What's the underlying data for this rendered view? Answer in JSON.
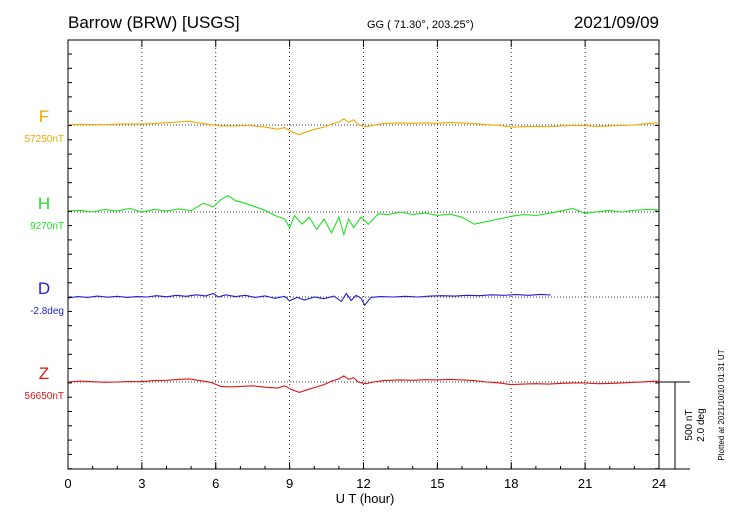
{
  "header": {
    "station": "Barrow (BRW)  [USGS]",
    "coords": "GG ( 71.30°, 203.25°)",
    "date": "2021/09/09"
  },
  "footer": {
    "plotted_note": "Plotted at 2021/10/10 01:31 UT",
    "scale_nt": "500 nT",
    "scale_deg": "2.0 deg"
  },
  "colors": {
    "F": "#f2a900",
    "H": "#22e022",
    "D": "#1f1fd6",
    "Z": "#e01414"
  },
  "chart_data": {
    "type": "line",
    "xlabel": "U T (hour)",
    "xlim": [
      0,
      24
    ],
    "xticks": [
      0,
      3,
      6,
      9,
      12,
      15,
      18,
      21,
      24
    ],
    "grid": true,
    "series": [
      {
        "name": "F",
        "baseline_label": "57250nT",
        "color_key": "F",
        "points": [
          [
            0,
            57252
          ],
          [
            0.5,
            57254
          ],
          [
            1,
            57253
          ],
          [
            1.5,
            57251
          ],
          [
            2,
            57255
          ],
          [
            2.5,
            57256
          ],
          [
            3,
            57255
          ],
          [
            3.5,
            57258
          ],
          [
            4,
            57263
          ],
          [
            4.5,
            57268
          ],
          [
            4.9,
            57272
          ],
          [
            5.3,
            57262
          ],
          [
            5.8,
            57252
          ],
          [
            6.2,
            57245
          ],
          [
            6.8,
            57244
          ],
          [
            7.4,
            57247
          ],
          [
            8,
            57238
          ],
          [
            8.5,
            57226
          ],
          [
            8.8,
            57235
          ],
          [
            9.1,
            57210
          ],
          [
            9.4,
            57195
          ],
          [
            9.7,
            57212
          ],
          [
            10,
            57225
          ],
          [
            10.4,
            57238
          ],
          [
            10.7,
            57255
          ],
          [
            11,
            57268
          ],
          [
            11.2,
            57285
          ],
          [
            11.4,
            57265
          ],
          [
            11.6,
            57280
          ],
          [
            11.8,
            57250
          ],
          [
            12.1,
            57240
          ],
          [
            12.4,
            57248
          ],
          [
            12.8,
            57258
          ],
          [
            13.5,
            57262
          ],
          [
            14,
            57260
          ],
          [
            14.5,
            57262
          ],
          [
            15,
            57260
          ],
          [
            15.5,
            57265
          ],
          [
            16,
            57262
          ],
          [
            16.5,
            57258
          ],
          [
            17,
            57252
          ],
          [
            17.5,
            57248
          ],
          [
            18,
            57238
          ],
          [
            18.5,
            57240
          ],
          [
            19,
            57242
          ],
          [
            19.5,
            57240
          ],
          [
            20,
            57245
          ],
          [
            20.5,
            57247
          ],
          [
            21,
            57246
          ],
          [
            21.5,
            57242
          ],
          [
            22,
            57245
          ],
          [
            22.5,
            57247
          ],
          [
            23,
            57250
          ],
          [
            23.5,
            57258
          ],
          [
            24,
            57262
          ]
        ]
      },
      {
        "name": "H",
        "baseline_label": "9270nT",
        "color_key": "H",
        "points": [
          [
            0,
            9275
          ],
          [
            0.5,
            9280
          ],
          [
            1,
            9270
          ],
          [
            1.5,
            9285
          ],
          [
            2,
            9275
          ],
          [
            2.5,
            9290
          ],
          [
            3,
            9270
          ],
          [
            3.5,
            9285
          ],
          [
            4,
            9275
          ],
          [
            4.5,
            9288
          ],
          [
            5,
            9278
          ],
          [
            5.5,
            9320
          ],
          [
            5.9,
            9300
          ],
          [
            6.2,
            9340
          ],
          [
            6.5,
            9365
          ],
          [
            6.8,
            9335
          ],
          [
            7.2,
            9320
          ],
          [
            7.6,
            9300
          ],
          [
            8,
            9280
          ],
          [
            8.4,
            9250
          ],
          [
            8.8,
            9230
          ],
          [
            9,
            9180
          ],
          [
            9.2,
            9250
          ],
          [
            9.5,
            9200
          ],
          [
            9.8,
            9240
          ],
          [
            10.1,
            9170
          ],
          [
            10.4,
            9230
          ],
          [
            10.7,
            9150
          ],
          [
            11,
            9240
          ],
          [
            11.2,
            9140
          ],
          [
            11.4,
            9230
          ],
          [
            11.6,
            9180
          ],
          [
            11.9,
            9240
          ],
          [
            12.2,
            9200
          ],
          [
            12.6,
            9260
          ],
          [
            13,
            9255
          ],
          [
            13.5,
            9270
          ],
          [
            14,
            9255
          ],
          [
            14.5,
            9265
          ],
          [
            15,
            9250
          ],
          [
            15.5,
            9258
          ],
          [
            16,
            9240
          ],
          [
            16.5,
            9200
          ],
          [
            17,
            9215
          ],
          [
            17.5,
            9230
          ],
          [
            18,
            9245
          ],
          [
            18.5,
            9255
          ],
          [
            19,
            9250
          ],
          [
            19.5,
            9262
          ],
          [
            20,
            9275
          ],
          [
            20.5,
            9290
          ],
          [
            21,
            9262
          ],
          [
            21.5,
            9272
          ],
          [
            22,
            9278
          ],
          [
            22.5,
            9270
          ],
          [
            23,
            9280
          ],
          [
            23.5,
            9285
          ],
          [
            24,
            9282
          ]
        ]
      },
      {
        "name": "D",
        "baseline_label": "-2.8deg",
        "color_key": "D",
        "points": [
          [
            0,
            -2.84
          ],
          [
            0.4,
            -2.78
          ],
          [
            0.8,
            -2.82
          ],
          [
            1.2,
            -2.76
          ],
          [
            1.6,
            -2.81
          ],
          [
            2,
            -2.77
          ],
          [
            2.4,
            -2.82
          ],
          [
            2.8,
            -2.78
          ],
          [
            3.2,
            -2.8
          ],
          [
            3.6,
            -2.74
          ],
          [
            4,
            -2.79
          ],
          [
            4.4,
            -2.72
          ],
          [
            4.8,
            -2.77
          ],
          [
            5.2,
            -2.7
          ],
          [
            5.6,
            -2.75
          ],
          [
            5.9,
            -2.64
          ],
          [
            6.1,
            -2.8
          ],
          [
            6.4,
            -2.7
          ],
          [
            6.8,
            -2.78
          ],
          [
            7.2,
            -2.72
          ],
          [
            7.6,
            -2.82
          ],
          [
            8,
            -2.75
          ],
          [
            8.4,
            -2.86
          ],
          [
            8.8,
            -2.77
          ],
          [
            9,
            -2.98
          ],
          [
            9.3,
            -2.82
          ],
          [
            9.6,
            -2.94
          ],
          [
            10,
            -2.8
          ],
          [
            10.4,
            -2.88
          ],
          [
            10.8,
            -2.76
          ],
          [
            11.1,
            -3.0
          ],
          [
            11.3,
            -2.64
          ],
          [
            11.5,
            -2.96
          ],
          [
            11.7,
            -2.72
          ],
          [
            11.9,
            -2.86
          ],
          [
            12.05,
            -3.18
          ],
          [
            12.3,
            -2.82
          ],
          [
            12.7,
            -2.78
          ],
          [
            13.2,
            -2.8
          ],
          [
            13.7,
            -2.77
          ],
          [
            14.2,
            -2.8
          ],
          [
            14.7,
            -2.76
          ],
          [
            15.2,
            -2.74
          ],
          [
            15.7,
            -2.76
          ],
          [
            16.2,
            -2.72
          ],
          [
            16.7,
            -2.74
          ],
          [
            17.2,
            -2.7
          ],
          [
            17.7,
            -2.72
          ],
          [
            18.2,
            -2.69
          ],
          [
            18.7,
            -2.72
          ],
          [
            19.2,
            -2.68
          ],
          [
            19.6,
            -2.71
          ]
        ]
      },
      {
        "name": "Z",
        "baseline_label": "56650nT",
        "color_key": "Z",
        "points": [
          [
            0,
            56650
          ],
          [
            0.5,
            56655
          ],
          [
            1,
            56652
          ],
          [
            1.5,
            56648
          ],
          [
            2,
            56650
          ],
          [
            2.5,
            56653
          ],
          [
            3,
            56652
          ],
          [
            3.5,
            56658
          ],
          [
            4,
            56660
          ],
          [
            4.5,
            56665
          ],
          [
            4.9,
            56668
          ],
          [
            5.3,
            56660
          ],
          [
            5.8,
            56648
          ],
          [
            6.2,
            56625
          ],
          [
            6.6,
            56622
          ],
          [
            7,
            56625
          ],
          [
            7.5,
            56628
          ],
          [
            8,
            56620
          ],
          [
            8.5,
            56615
          ],
          [
            8.8,
            56628
          ],
          [
            9.1,
            56605
          ],
          [
            9.4,
            56590
          ],
          [
            9.7,
            56605
          ],
          [
            10,
            56618
          ],
          [
            10.4,
            56635
          ],
          [
            10.7,
            56655
          ],
          [
            11,
            56668
          ],
          [
            11.2,
            56685
          ],
          [
            11.4,
            56665
          ],
          [
            11.6,
            56675
          ],
          [
            11.8,
            56648
          ],
          [
            12.1,
            56640
          ],
          [
            12.4,
            56650
          ],
          [
            12.8,
            56658
          ],
          [
            13.5,
            56662
          ],
          [
            14,
            56660
          ],
          [
            14.5,
            56663
          ],
          [
            15,
            56662
          ],
          [
            15.5,
            56665
          ],
          [
            16,
            56662
          ],
          [
            16.5,
            56658
          ],
          [
            17,
            56650
          ],
          [
            17.5,
            56645
          ],
          [
            18,
            56635
          ],
          [
            18.5,
            56638
          ],
          [
            19,
            56640
          ],
          [
            19.5,
            56638
          ],
          [
            20,
            56642
          ],
          [
            20.5,
            56645
          ],
          [
            21,
            56644
          ],
          [
            21.5,
            56640
          ],
          [
            22,
            56642
          ],
          [
            22.5,
            56645
          ],
          [
            23,
            56648
          ],
          [
            23.5,
            56652
          ],
          [
            24,
            56655
          ]
        ]
      }
    ]
  }
}
